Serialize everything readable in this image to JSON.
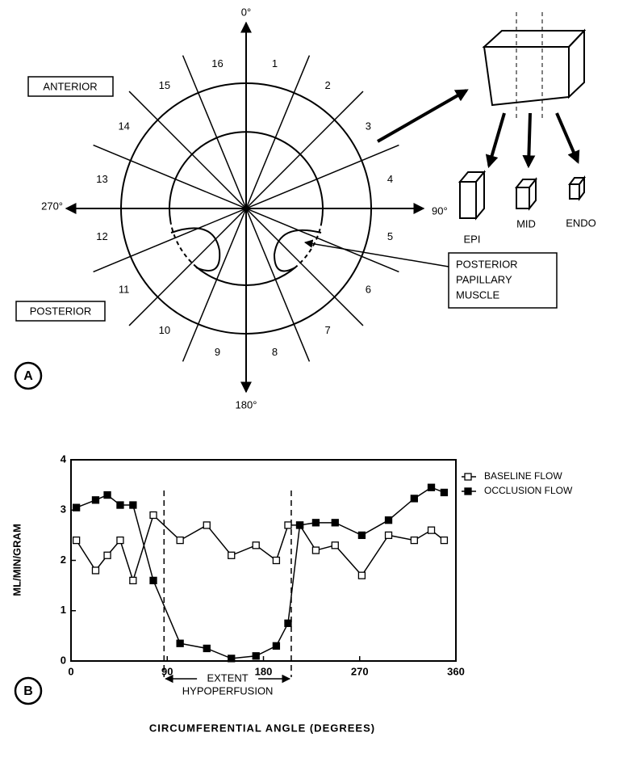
{
  "panel_a": {
    "letter": "A",
    "axes": {
      "top": "0°",
      "right": "90°",
      "bottom": "180°",
      "left": "270°"
    },
    "anterior": "ANTERIOR",
    "posterior": "POSTERIOR",
    "segments": [
      "1",
      "2",
      "3",
      "4",
      "5",
      "6",
      "7",
      "8",
      "9",
      "10",
      "11",
      "12",
      "13",
      "14",
      "15",
      "16"
    ],
    "callout": [
      "POSTERIOR",
      "PAPILLARY",
      "MUSCLE"
    ],
    "layers": [
      "EPI",
      "MID",
      "ENDO"
    ]
  },
  "chart_data": {
    "type": "line",
    "panel_letter": "B",
    "x_label": "CIRCUMFERENTIAL ANGLE (DEGREES)",
    "y_label": "ML/MIN/GRAM",
    "xlim": [
      0,
      360
    ],
    "xticks": [
      0,
      90,
      180,
      270,
      360
    ],
    "ylim": [
      0,
      4
    ],
    "yticks": [
      0,
      1,
      2,
      3,
      4
    ],
    "vlines": [
      87,
      206
    ],
    "annotation": [
      "EXTENT",
      "HYPOPERFUSION"
    ],
    "legend": "outside-right",
    "x": [
      5,
      23,
      34,
      46,
      58,
      77,
      102,
      127,
      150,
      173,
      192,
      203,
      214,
      229,
      247,
      272,
      297,
      321,
      337,
      349
    ],
    "series": [
      {
        "name": "BASELINE FLOW",
        "color": "#000",
        "marker": "open-square",
        "values": [
          2.4,
          1.8,
          2.1,
          2.4,
          1.6,
          2.9,
          2.4,
          2.7,
          2.1,
          2.3,
          2.0,
          2.7,
          2.7,
          2.2,
          2.3,
          1.7,
          2.5,
          2.4,
          2.6,
          2.4
        ]
      },
      {
        "name": "OCCLUSION FLOW",
        "color": "#000",
        "marker": "filled-square",
        "values": [
          3.05,
          3.2,
          3.3,
          3.1,
          3.1,
          1.6,
          0.35,
          0.25,
          0.05,
          0.1,
          0.3,
          0.75,
          2.7,
          2.75,
          2.75,
          2.5,
          2.8,
          3.23,
          3.45,
          3.35
        ]
      }
    ]
  }
}
